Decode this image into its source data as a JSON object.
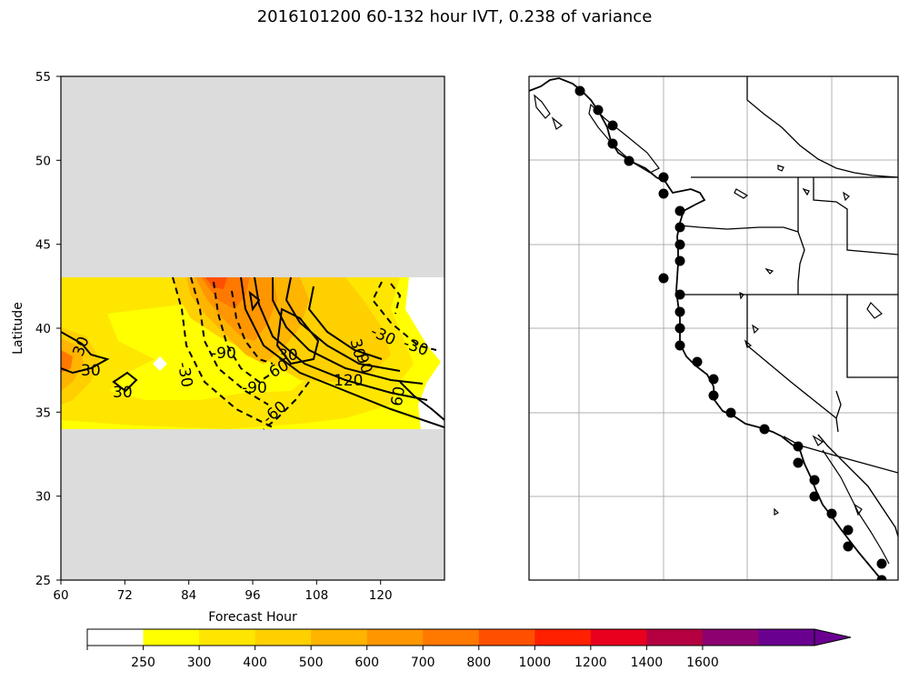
{
  "figure": {
    "title": "2016101200 60-132 hour IVT, 0.238 of variance"
  },
  "left_panel": {
    "xlabel": "Forecast Hour",
    "ylabel": "Latitude",
    "xticks": [
      "60",
      "72",
      "84",
      "96",
      "108",
      "120"
    ],
    "yticks": [
      "25",
      "30",
      "35",
      "40",
      "45",
      "50",
      "55"
    ],
    "xlim": [
      60,
      132
    ],
    "ylim": [
      25,
      55
    ],
    "data_band_latitude": [
      34,
      43
    ],
    "contour_labels": [
      "30",
      "30",
      "30",
      "-90",
      "-30",
      "-90",
      "-60",
      "30",
      "60",
      "120",
      "30",
      "-30",
      "-30",
      "90",
      "60"
    ],
    "masked_color": "#dcdcdc"
  },
  "right_panel": {
    "description_map": "West coast of North America with state/province borders",
    "marker_color": "#000000"
  },
  "colorbar": {
    "tick_labels": [
      "250",
      "300",
      "400",
      "500",
      "600",
      "700",
      "800",
      "1000",
      "1200",
      "1400",
      "1600"
    ],
    "colors": [
      "#ffffff",
      "#ffff00",
      "#ffe600",
      "#ffd000",
      "#ffb400",
      "#ff9600",
      "#ff7800",
      "#ff5000",
      "#ff2000",
      "#e8001e",
      "#b40040",
      "#8c0070",
      "#6a0090"
    ]
  },
  "chart_data": {
    "type": "heatmap",
    "title": "2016101200 60-132 hour IVT, 0.238 of variance",
    "xlabel": "Forecast Hour",
    "ylabel": "Latitude",
    "xlim": [
      60,
      132
    ],
    "ylim": [
      25,
      55
    ],
    "color_levels": [
      250,
      300,
      400,
      500,
      600,
      700,
      800,
      1000,
      1200,
      1400,
      1600
    ],
    "grid": false
  }
}
